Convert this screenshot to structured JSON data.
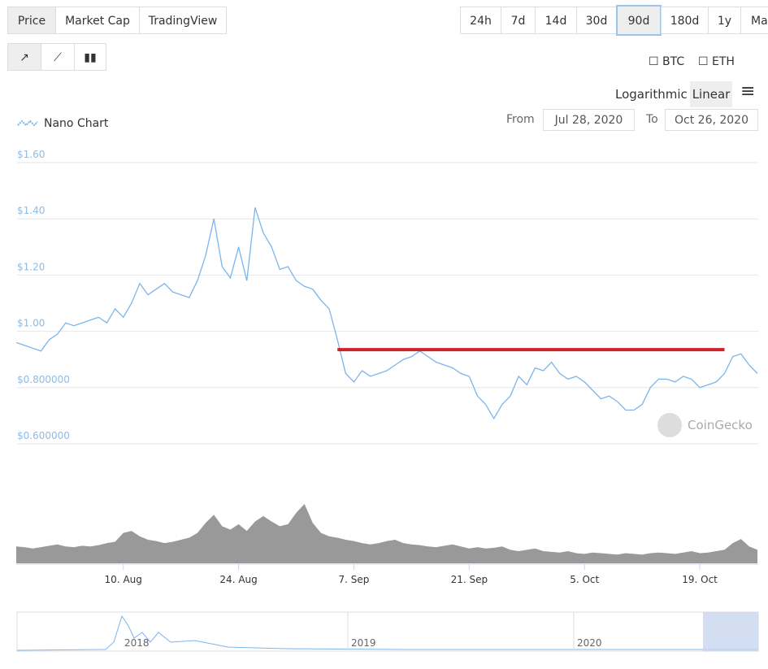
{
  "ui": {
    "tabs": [
      "Price",
      "Market Cap",
      "TradingView"
    ],
    "ranges": [
      "24h",
      "7d",
      "14d",
      "30d",
      "90d",
      "180d",
      "1y",
      "Max"
    ],
    "compare": [
      "BTC",
      "ETH"
    ],
    "scales": [
      "Logarithmic",
      "Linear"
    ],
    "from_label": "From",
    "from": "Jul 28, 2020",
    "to_label": "To",
    "to": "Oct 26, 2020",
    "watermark": "CoinGecko",
    "navigator_labels": [
      "2018",
      "2019",
      "2020"
    ]
  },
  "chart_data": {
    "type": "line",
    "title": "Nano Chart",
    "x": [
      "2020-07-28",
      "2020-07-29",
      "2020-07-30",
      "2020-07-31",
      "2020-08-01",
      "2020-08-02",
      "2020-08-03",
      "2020-08-04",
      "2020-08-05",
      "2020-08-06",
      "2020-08-07",
      "2020-08-08",
      "2020-08-09",
      "2020-08-10",
      "2020-08-11",
      "2020-08-12",
      "2020-08-13",
      "2020-08-14",
      "2020-08-15",
      "2020-08-16",
      "2020-08-17",
      "2020-08-18",
      "2020-08-19",
      "2020-08-20",
      "2020-08-21",
      "2020-08-22",
      "2020-08-23",
      "2020-08-24",
      "2020-08-25",
      "2020-08-26",
      "2020-08-27",
      "2020-08-28",
      "2020-08-29",
      "2020-08-30",
      "2020-08-31",
      "2020-09-01",
      "2020-09-02",
      "2020-09-03",
      "2020-09-04",
      "2020-09-05",
      "2020-09-06",
      "2020-09-07",
      "2020-09-08",
      "2020-09-09",
      "2020-09-10",
      "2020-09-11",
      "2020-09-12",
      "2020-09-13",
      "2020-09-14",
      "2020-09-15",
      "2020-09-16",
      "2020-09-17",
      "2020-09-18",
      "2020-09-19",
      "2020-09-20",
      "2020-09-21",
      "2020-09-22",
      "2020-09-23",
      "2020-09-24",
      "2020-09-25",
      "2020-09-26",
      "2020-09-27",
      "2020-09-28",
      "2020-09-29",
      "2020-09-30",
      "2020-10-01",
      "2020-10-02",
      "2020-10-03",
      "2020-10-04",
      "2020-10-05",
      "2020-10-06",
      "2020-10-07",
      "2020-10-08",
      "2020-10-09",
      "2020-10-10",
      "2020-10-11",
      "2020-10-12",
      "2020-10-13",
      "2020-10-14",
      "2020-10-15",
      "2020-10-16",
      "2020-10-17",
      "2020-10-18",
      "2020-10-19",
      "2020-10-20",
      "2020-10-21",
      "2020-10-22",
      "2020-10-23",
      "2020-10-24",
      "2020-10-25",
      "2020-10-26"
    ],
    "series": [
      {
        "name": "Price",
        "color": "#7cb5ec",
        "values": [
          0.96,
          0.95,
          0.94,
          0.93,
          0.97,
          0.99,
          1.03,
          1.02,
          1.03,
          1.04,
          1.05,
          1.03,
          1.08,
          1.05,
          1.1,
          1.17,
          1.13,
          1.15,
          1.17,
          1.14,
          1.13,
          1.12,
          1.18,
          1.27,
          1.4,
          1.23,
          1.19,
          1.3,
          1.18,
          1.44,
          1.35,
          1.3,
          1.22,
          1.23,
          1.18,
          1.16,
          1.15,
          1.11,
          1.08,
          0.97,
          0.85,
          0.82,
          0.86,
          0.84,
          0.85,
          0.86,
          0.88,
          0.9,
          0.91,
          0.93,
          0.91,
          0.89,
          0.88,
          0.87,
          0.85,
          0.84,
          0.77,
          0.74,
          0.69,
          0.74,
          0.77,
          0.84,
          0.81,
          0.87,
          0.86,
          0.89,
          0.85,
          0.83,
          0.84,
          0.82,
          0.79,
          0.76,
          0.77,
          0.75,
          0.72,
          0.72,
          0.74,
          0.8,
          0.83,
          0.83,
          0.82,
          0.84,
          0.83,
          0.8,
          0.81,
          0.82,
          0.85,
          0.91,
          0.92,
          0.88,
          0.85
        ]
      }
    ],
    "volume": {
      "color": "#999999",
      "lim": [
        0,
        100
      ],
      "values": [
        25,
        24,
        22,
        24,
        26,
        28,
        25,
        24,
        26,
        25,
        27,
        30,
        32,
        45,
        48,
        40,
        35,
        33,
        30,
        32,
        35,
        38,
        45,
        60,
        72,
        55,
        50,
        58,
        48,
        62,
        70,
        62,
        55,
        58,
        75,
        88,
        60,
        45,
        40,
        38,
        35,
        33,
        30,
        28,
        30,
        33,
        35,
        30,
        28,
        27,
        25,
        24,
        26,
        28,
        25,
        22,
        24,
        22,
        23,
        25,
        20,
        18,
        20,
        22,
        18,
        17,
        16,
        18,
        15,
        14,
        16,
        15,
        14,
        13,
        15,
        14,
        13,
        15,
        16,
        15,
        14,
        16,
        18,
        15,
        16,
        18,
        20,
        30,
        36,
        25,
        20
      ]
    },
    "xlim": [
      "2020-07-28",
      "2020-10-26"
    ],
    "xticks": [
      {
        "value": "2020-08-10",
        "label": "10. Aug"
      },
      {
        "value": "2020-08-24",
        "label": "24. Aug"
      },
      {
        "value": "2020-09-07",
        "label": "7. Sep"
      },
      {
        "value": "2020-09-21",
        "label": "21. Sep"
      },
      {
        "value": "2020-10-05",
        "label": "5. Oct"
      },
      {
        "value": "2020-10-19",
        "label": "19. Oct"
      }
    ],
    "ylim": [
      0.6,
      1.6
    ],
    "yticks": [
      {
        "value": 0.6,
        "label": "$0.600000"
      },
      {
        "value": 0.8,
        "label": "$0.800000"
      },
      {
        "value": 1.0,
        "label": "$1.00"
      },
      {
        "value": 1.2,
        "label": "$1.20"
      },
      {
        "value": 1.4,
        "label": "$1.40"
      },
      {
        "value": 1.6,
        "label": "$1.60"
      }
    ],
    "grid": true,
    "annotation": {
      "x": [
        "2020-09-05",
        "2020-10-22"
      ],
      "y": 0.935,
      "color": "#d0202a"
    }
  }
}
